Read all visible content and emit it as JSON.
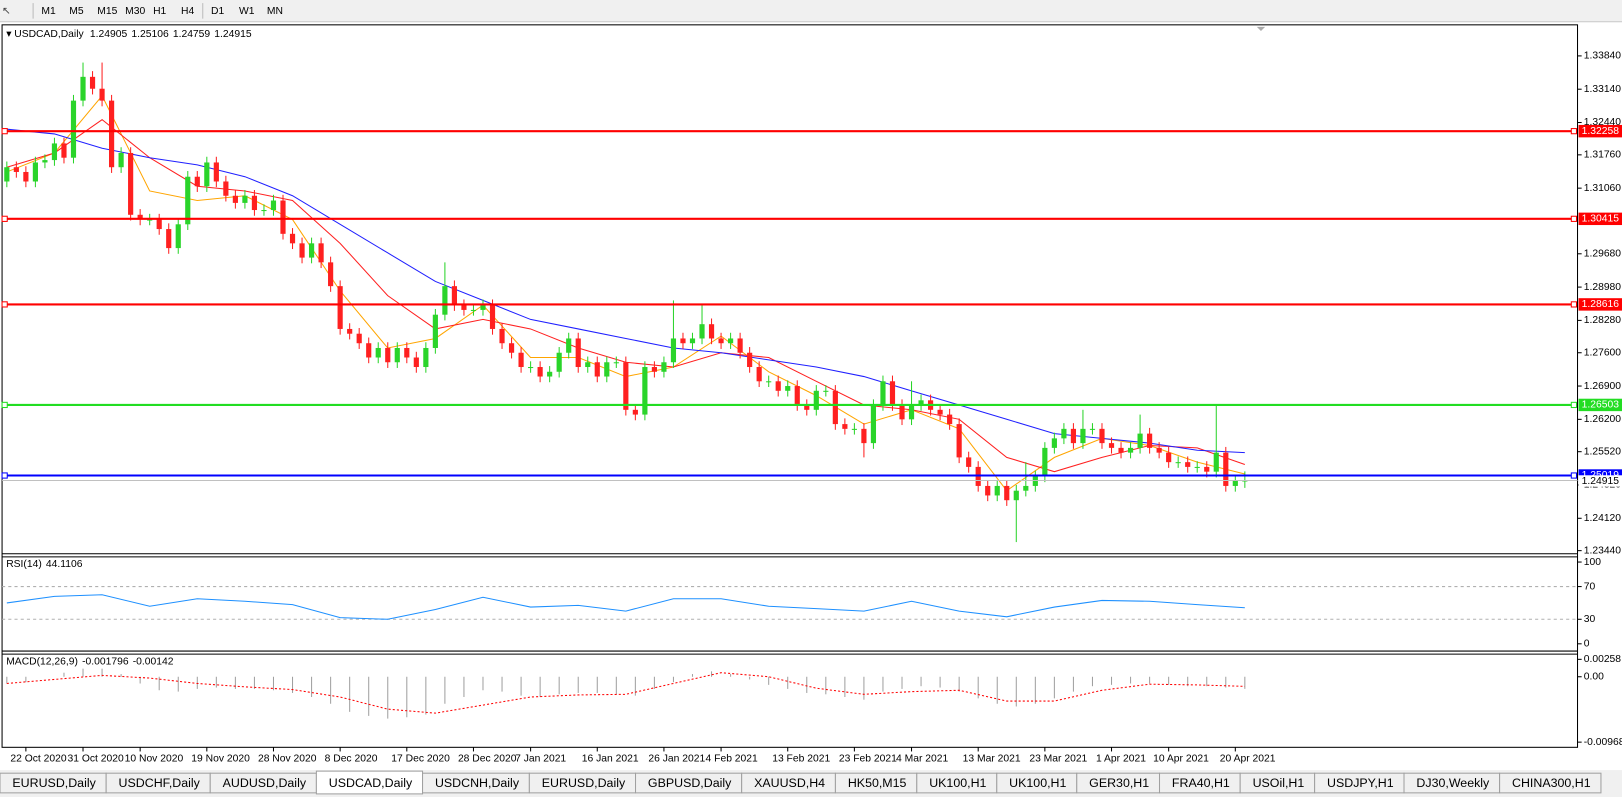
{
  "toolbar": {
    "timeframes": [
      "M1",
      "M5",
      "M15",
      "M30",
      "H1",
      "H4",
      "D1",
      "W1",
      "MN"
    ]
  },
  "tabs": {
    "items": [
      "EURUSD,Daily",
      "USDCHF,Daily",
      "AUDUSD,Daily",
      "USDCAD,Daily",
      "USDCNH,Daily",
      "EURUSD,Daily",
      "GBPUSD,Daily",
      "XAUUSD,H4",
      "HK50,M15",
      "UK100,H1",
      "UK100,H1",
      "GER30,H1",
      "FRA40,H1",
      "USOil,H1",
      "USDJPY,H1",
      "DJ30,Weekly",
      "CHINA300,H1"
    ],
    "active": 3
  },
  "chart_data": {
    "type": "candlestick",
    "symbol": "USDCAD,Daily",
    "up_color": "#2ad42a",
    "down_color": "#ff2020",
    "categories": [
      null,
      null,
      "22 Oct 2020",
      null,
      null,
      null,
      null,
      null,
      "31 Oct 2020",
      null,
      null,
      null,
      null,
      null,
      "10 Nov 2020",
      null,
      null,
      null,
      null,
      null,
      null,
      "19 Nov 2020",
      null,
      null,
      null,
      null,
      null,
      null,
      "28 Nov 2020",
      null,
      null,
      null,
      null,
      null,
      null,
      "8 Dec 2020",
      null,
      null,
      null,
      null,
      null,
      null,
      "17 Dec 2020",
      null,
      null,
      null,
      null,
      null,
      null,
      "28 Dec 2020",
      null,
      null,
      null,
      null,
      null,
      "7 Jan 2021",
      null,
      null,
      null,
      null,
      null,
      null,
      "16 Jan 2021",
      null,
      null,
      null,
      null,
      null,
      null,
      "26 Jan 2021",
      null,
      null,
      null,
      null,
      null,
      "4 Feb 2021",
      null,
      null,
      null,
      null,
      null,
      null,
      "13 Feb 2021",
      null,
      null,
      null,
      null,
      null,
      null,
      "23 Feb 2021",
      null,
      null,
      null,
      null,
      null,
      "4 Mar 2021",
      null,
      null,
      null,
      null,
      null,
      null,
      "13 Mar 2021",
      null,
      null,
      null,
      null,
      null,
      null,
      "23 Mar 2021",
      null,
      null,
      null,
      null,
      null,
      null,
      "1 Apr 2021",
      null,
      null,
      null,
      null,
      null,
      "10 Apr 2021",
      null,
      null,
      null,
      null,
      null,
      null,
      "20 Apr 2021",
      null
    ],
    "open": [
      1.312,
      1.315,
      1.314,
      1.312,
      1.316,
      1.3165,
      1.32,
      1.317,
      1.329,
      1.334,
      1.3315,
      1.329,
      1.315,
      1.318,
      1.305,
      1.304,
      1.304,
      1.302,
      1.298,
      1.303,
      1.313,
      1.311,
      1.316,
      1.312,
      1.309,
      1.3075,
      1.309,
      1.306,
      1.306,
      1.308,
      1.301,
      1.299,
      1.296,
      1.299,
      1.295,
      1.29,
      1.281,
      1.28,
      1.278,
      1.275,
      1.277,
      1.274,
      1.277,
      1.275,
      1.273,
      1.277,
      1.284,
      1.29,
      1.286,
      1.285,
      1.285,
      1.286,
      1.281,
      1.278,
      1.276,
      1.273,
      1.273,
      1.271,
      1.272,
      1.276,
      1.279,
      1.273,
      1.274,
      1.271,
      1.274,
      1.274,
      1.264,
      1.263,
      1.273,
      1.272,
      1.274,
      1.279,
      1.278,
      1.279,
      1.282,
      1.279,
      1.278,
      1.279,
      1.276,
      1.273,
      1.27,
      1.27,
      1.268,
      1.269,
      1.265,
      1.264,
      1.268,
      1.268,
      1.261,
      1.26,
      1.26,
      1.257,
      1.265,
      1.27,
      1.265,
      1.262,
      1.265,
      1.266,
      1.264,
      1.263,
      1.261,
      1.254,
      1.252,
      1.248,
      1.246,
      1.248,
      1.245,
      1.247,
      1.248,
      1.25,
      1.256,
      1.258,
      1.26,
      1.257,
      1.26,
      1.26,
      1.257,
      1.256,
      1.255,
      1.256,
      1.259,
      1.256,
      1.255,
      1.253,
      1.253,
      1.252,
      1.252,
      1.251,
      1.255,
      1.248,
      1.24905
    ],
    "high": [
      1.3162,
      1.3162,
      1.3152,
      1.3172,
      1.3177,
      1.3212,
      1.3212,
      1.3302,
      1.337,
      1.3352,
      1.337,
      1.3302,
      1.3192,
      1.3192,
      1.3062,
      1.3052,
      1.3052,
      1.3032,
      1.3042,
      1.3142,
      1.3142,
      1.3172,
      1.3172,
      1.3132,
      1.3102,
      1.3102,
      1.3102,
      1.3072,
      1.3092,
      1.3092,
      1.3022,
      1.3002,
      1.3002,
      1.3002,
      1.2962,
      1.2912,
      1.2822,
      1.2812,
      1.2792,
      1.2782,
      1.2782,
      1.2782,
      1.2782,
      1.2762,
      1.2782,
      1.2852,
      1.295,
      1.2912,
      1.2872,
      1.2862,
      1.2872,
      1.2872,
      1.2822,
      1.2792,
      1.2772,
      1.2742,
      1.2742,
      1.2732,
      1.2772,
      1.2802,
      1.2802,
      1.2752,
      1.2752,
      1.2752,
      1.2752,
      1.2752,
      1.2652,
      1.2742,
      1.2742,
      1.2752,
      1.287,
      1.2802,
      1.2802,
      1.286,
      1.2832,
      1.2802,
      1.2802,
      1.2802,
      1.2772,
      1.2742,
      1.2712,
      1.2712,
      1.2702,
      1.2702,
      1.2662,
      1.2692,
      1.2692,
      1.2692,
      1.2622,
      1.2612,
      1.2612,
      1.2662,
      1.2712,
      1.2712,
      1.2662,
      1.27,
      1.2672,
      1.2672,
      1.2652,
      1.2642,
      1.2622,
      1.2552,
      1.2532,
      1.2492,
      1.2492,
      1.2492,
      1.2482,
      1.253,
      1.2512,
      1.2572,
      1.2592,
      1.2612,
      1.2612,
      1.264,
      1.2612,
      1.2612,
      1.2582,
      1.2572,
      1.2572,
      1.263,
      1.2602,
      1.2572,
      1.2562,
      1.2542,
      1.2542,
      1.2532,
      1.2532,
      1.265,
      1.2562,
      1.2502,
      1.25106
    ],
    "low": [
      1.3108,
      1.3128,
      1.3108,
      1.3108,
      1.3148,
      1.3153,
      1.3158,
      1.3158,
      1.3278,
      1.3303,
      1.3278,
      1.3138,
      1.3138,
      1.3038,
      1.3028,
      1.3028,
      1.3008,
      1.2968,
      1.2968,
      1.3018,
      1.3098,
      1.3098,
      1.3108,
      1.3078,
      1.3063,
      1.3063,
      1.3048,
      1.3048,
      1.3048,
      1.2998,
      1.2978,
      1.2948,
      1.2948,
      1.2938,
      1.2888,
      1.2798,
      1.2788,
      1.2768,
      1.2738,
      1.2738,
      1.2728,
      1.2728,
      1.2738,
      1.2718,
      1.2718,
      1.2758,
      1.2828,
      1.2848,
      1.2838,
      1.2838,
      1.2838,
      1.2798,
      1.2768,
      1.2748,
      1.2718,
      1.2718,
      1.2698,
      1.2698,
      1.2708,
      1.2748,
      1.2718,
      1.2718,
      1.2698,
      1.2698,
      1.2728,
      1.2628,
      1.2618,
      1.2618,
      1.2708,
      1.2708,
      1.2728,
      1.2768,
      1.2768,
      1.2778,
      1.2778,
      1.2768,
      1.2768,
      1.2748,
      1.2718,
      1.2688,
      1.2688,
      1.2668,
      1.2668,
      1.2638,
      1.2628,
      1.2628,
      1.2668,
      1.2598,
      1.2588,
      1.2588,
      1.254,
      1.2558,
      1.2638,
      1.2638,
      1.2608,
      1.2608,
      1.2638,
      1.2628,
      1.2618,
      1.2598,
      1.2528,
      1.2508,
      1.2468,
      1.2448,
      1.2448,
      1.2438,
      1.2362,
      1.2458,
      1.2468,
      1.2488,
      1.2548,
      1.2568,
      1.2558,
      1.2558,
      1.2588,
      1.2558,
      1.2548,
      1.2538,
      1.2538,
      1.2548,
      1.2548,
      1.2538,
      1.2518,
      1.2518,
      1.2508,
      1.2508,
      1.2498,
      1.2498,
      1.2468,
      1.2468,
      1.24759
    ],
    "close": [
      1.315,
      1.314,
      1.312,
      1.316,
      1.3165,
      1.32,
      1.317,
      1.329,
      1.334,
      1.3315,
      1.329,
      1.315,
      1.318,
      1.305,
      1.304,
      1.304,
      1.302,
      1.298,
      1.303,
      1.313,
      1.311,
      1.316,
      1.312,
      1.309,
      1.3075,
      1.309,
      1.306,
      1.306,
      1.308,
      1.301,
      1.299,
      1.296,
      1.299,
      1.295,
      1.29,
      1.281,
      1.28,
      1.278,
      1.275,
      1.277,
      1.274,
      1.277,
      1.275,
      1.273,
      1.277,
      1.284,
      1.29,
      1.286,
      1.285,
      1.285,
      1.286,
      1.281,
      1.278,
      1.276,
      1.273,
      1.273,
      1.271,
      1.272,
      1.276,
      1.279,
      1.273,
      1.274,
      1.271,
      1.274,
      1.274,
      1.264,
      1.263,
      1.273,
      1.272,
      1.274,
      1.279,
      1.278,
      1.279,
      1.282,
      1.279,
      1.278,
      1.279,
      1.276,
      1.273,
      1.27,
      1.27,
      1.268,
      1.269,
      1.265,
      1.264,
      1.268,
      1.268,
      1.261,
      1.26,
      1.26,
      1.257,
      1.265,
      1.27,
      1.265,
      1.262,
      1.265,
      1.266,
      1.264,
      1.263,
      1.261,
      1.254,
      1.252,
      1.248,
      1.246,
      1.248,
      1.245,
      1.247,
      1.248,
      1.25,
      1.256,
      1.258,
      1.26,
      1.257,
      1.26,
      1.26,
      1.257,
      1.256,
      1.255,
      1.256,
      1.259,
      1.256,
      1.255,
      1.253,
      1.253,
      1.252,
      1.252,
      1.251,
      1.255,
      1.248,
      1.24905,
      1.24915
    ],
    "ylim": [
      1.23396,
      1.34493
    ],
    "yticks": [
      {
        "value": 1.3384,
        "label": "1.33840"
      },
      {
        "value": 1.3314,
        "label": "1.33140"
      },
      {
        "value": 1.3244,
        "label": "1.32440"
      },
      {
        "value": 1.3176,
        "label": "1.31760"
      },
      {
        "value": 1.3106,
        "label": "1.31060"
      },
      {
        "value": 1.2968,
        "label": "1.29680"
      },
      {
        "value": 1.2898,
        "label": "1.28980"
      },
      {
        "value": 1.2828,
        "label": "1.28280"
      },
      {
        "value": 1.276,
        "label": "1.27600"
      },
      {
        "value": 1.269,
        "label": "1.26900"
      },
      {
        "value": 1.262,
        "label": "1.26200"
      },
      {
        "value": 1.2552,
        "label": "1.25520"
      },
      {
        "value": 1.2482,
        "label": "1.24820"
      },
      {
        "value": 1.2412,
        "label": "1.24120"
      },
      {
        "value": 1.2344,
        "label": "1.23440"
      }
    ],
    "levels": [
      {
        "value": 1.32258,
        "color": "#ff0000"
      },
      {
        "value": 1.30415,
        "color": "#ff0000"
      },
      {
        "value": 1.28616,
        "color": "#ff0000"
      },
      {
        "value": 1.26503,
        "color": "#22dd22"
      },
      {
        "value": 1.25019,
        "color": "#0000ff"
      }
    ],
    "sample_x": [
      0,
      5,
      10,
      15,
      20,
      25,
      30,
      35,
      40,
      45,
      50,
      55,
      60,
      65,
      70,
      75,
      80,
      85,
      90,
      95,
      100,
      105,
      110,
      115,
      120,
      125,
      130
    ],
    "moving_averages": [
      {
        "color": "#ffa500",
        "values": [
          1.314,
          1.318,
          1.33,
          1.31,
          1.308,
          1.309,
          1.304,
          1.289,
          1.277,
          1.279,
          1.286,
          1.275,
          1.275,
          1.271,
          1.273,
          1.2795,
          1.272,
          1.267,
          1.261,
          1.264,
          1.26,
          1.247,
          1.254,
          1.258,
          1.2565,
          1.253,
          1.2505
        ]
      },
      {
        "color": "#ff2020",
        "values": [
          1.315,
          1.318,
          1.325,
          1.317,
          1.311,
          1.31,
          1.308,
          1.299,
          1.288,
          1.281,
          1.283,
          1.281,
          1.277,
          1.274,
          1.273,
          1.276,
          1.275,
          1.27,
          1.265,
          1.264,
          1.262,
          1.254,
          1.251,
          1.254,
          1.2565,
          1.256,
          1.2525
        ]
      },
      {
        "color": "#2020ff",
        "values": [
          1.323,
          1.322,
          1.319,
          1.317,
          1.3155,
          1.313,
          1.309,
          1.303,
          1.297,
          1.291,
          1.287,
          1.283,
          1.281,
          1.279,
          1.277,
          1.276,
          1.2745,
          1.273,
          1.271,
          1.268,
          1.265,
          1.262,
          1.259,
          1.258,
          1.257,
          1.2555,
          1.255
        ]
      }
    ],
    "rsi": {
      "label": "RSI(14)",
      "color": "#1e90ff",
      "ylim": [
        0,
        100
      ],
      "yticks": [
        0,
        30,
        70,
        100
      ],
      "values": [
        50,
        58,
        60,
        46,
        55,
        52,
        48,
        32,
        30,
        42,
        57,
        45,
        47,
        40,
        55,
        55,
        46,
        43,
        40,
        52,
        40,
        33,
        45,
        53,
        52,
        48,
        44.1106
      ]
    },
    "macd": {
      "label": "MACD(12,26,9)",
      "hist_color": "#a0a0a0",
      "signal_color": "#ff0000",
      "ylim": [
        -0.009687,
        0.00258
      ],
      "yticks": [
        -0.009687,
        {
          "value": 0,
          "label": "0.00"
        },
        0.00258
      ],
      "hist_x": [
        0,
        2,
        4,
        6,
        8,
        10,
        12,
        14,
        16,
        18,
        20,
        22,
        24,
        26,
        28,
        30,
        32,
        34,
        36,
        38,
        40,
        42,
        44,
        46,
        48,
        50,
        52,
        54,
        56,
        58,
        60,
        62,
        64,
        66,
        68,
        70,
        72,
        74,
        76,
        78,
        80,
        82,
        84,
        86,
        88,
        90,
        92,
        94,
        96,
        98,
        100,
        102,
        104,
        106,
        108,
        110,
        112,
        114,
        116,
        118,
        120,
        122,
        124,
        126,
        128,
        130
      ],
      "histogram": [
        -0.001,
        -0.0008,
        0,
        0.0006,
        0.0012,
        0.0012,
        0.0004,
        -0.001,
        -0.002,
        -0.0022,
        -0.0018,
        -0.0016,
        -0.0018,
        -0.0018,
        -0.002,
        -0.0024,
        -0.003,
        -0.004,
        -0.0052,
        -0.0058,
        -0.0062,
        -0.006,
        -0.0056,
        -0.004,
        -0.003,
        -0.002,
        -0.0022,
        -0.0028,
        -0.003,
        -0.0026,
        -0.0024,
        -0.0024,
        -0.0026,
        -0.0028,
        -0.0018,
        -0.0008,
        0.0004,
        0.0008,
        0.0004,
        -0.0004,
        -0.0012,
        -0.0018,
        -0.0024,
        -0.0026,
        -0.003,
        -0.0034,
        -0.0022,
        -0.0018,
        -0.0014,
        -0.0016,
        -0.0022,
        -0.0032,
        -0.004,
        -0.0044,
        -0.004,
        -0.0032,
        -0.0022,
        -0.0014,
        -0.0012,
        -0.001,
        -0.001,
        -0.0012,
        -0.0014,
        -0.0014,
        -0.0016,
        -0.001796
      ],
      "signal": [
        -0.001,
        -0.0004,
        0.0002,
        -0.0002,
        -0.001,
        -0.0015,
        -0.0019,
        -0.003,
        -0.0048,
        -0.0054,
        -0.0042,
        -0.003,
        -0.0027,
        -0.0026,
        -0.001,
        0.0006,
        0,
        -0.0017,
        -0.0026,
        -0.0022,
        -0.002,
        -0.0036,
        -0.0036,
        -0.002,
        -0.0011,
        -0.0012,
        -0.00142
      ]
    }
  }
}
